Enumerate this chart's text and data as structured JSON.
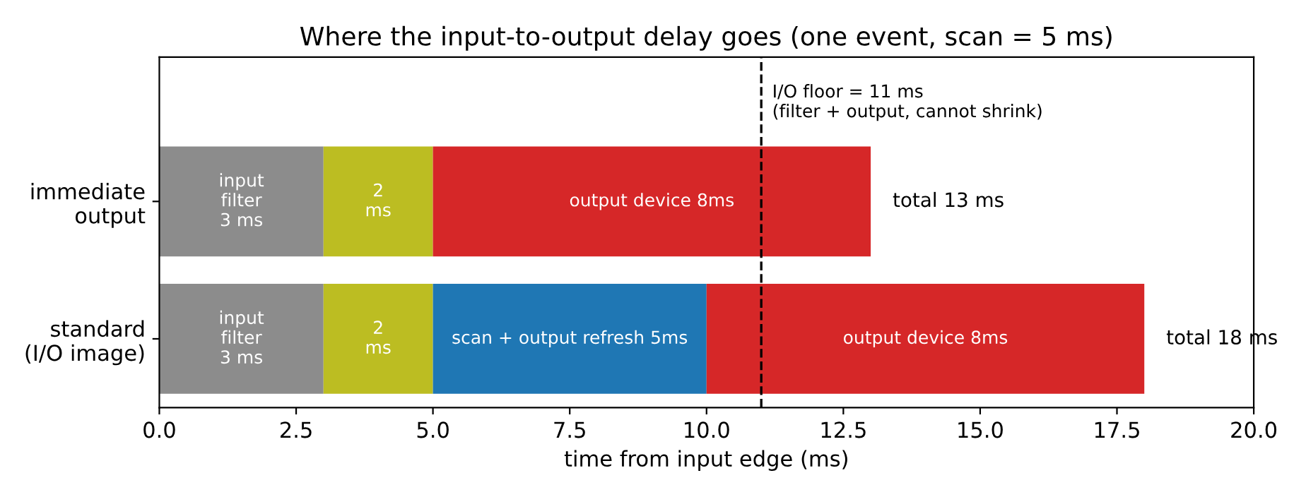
{
  "chart_data": {
    "type": "bar",
    "orientation": "horizontal",
    "stacked": true,
    "title": "Where the input-to-output delay goes (one event, scan = 5 ms)",
    "xlabel": "time from input edge (ms)",
    "categories": [
      "immediate\noutput",
      "standard\n(I/O image)"
    ],
    "series": [
      {
        "color": "#8c8c8c",
        "values": [
          3,
          3
        ],
        "value_labels": [
          "input\nfilter\n3 ms",
          "input\nfilter\n3 ms"
        ]
      },
      {
        "color": "#bcbd22",
        "values": [
          2,
          2
        ],
        "value_labels": [
          "2\nms",
          "2\nms"
        ]
      },
      {
        "color": "#1f77b4",
        "values": [
          null,
          5
        ],
        "value_labels": [
          null,
          "scan + output refresh 5ms"
        ]
      },
      {
        "color": "#d62728",
        "values": [
          8,
          8
        ],
        "value_labels": [
          "output device 8ms",
          "output device 8ms"
        ]
      }
    ],
    "totals": [
      "total 13 ms",
      "total 18 ms"
    ],
    "ref_lines": [
      {
        "axis": "x",
        "value": 11,
        "label": "I/O floor = 11 ms\n(filter + output, cannot shrink)",
        "color": "#000000",
        "line_style": "dashed"
      }
    ],
    "xlim": [
      0,
      20
    ],
    "xticks": [
      {
        "value": 0,
        "label": "0.0"
      },
      2.5,
      {
        "value": 5,
        "label": "5.0"
      },
      7.5,
      {
        "value": 10,
        "label": "10.0"
      },
      12.5,
      {
        "value": 15,
        "label": "15.0"
      },
      17.5,
      {
        "value": 20,
        "label": "20.0"
      }
    ],
    "grid": false,
    "legend": false
  }
}
